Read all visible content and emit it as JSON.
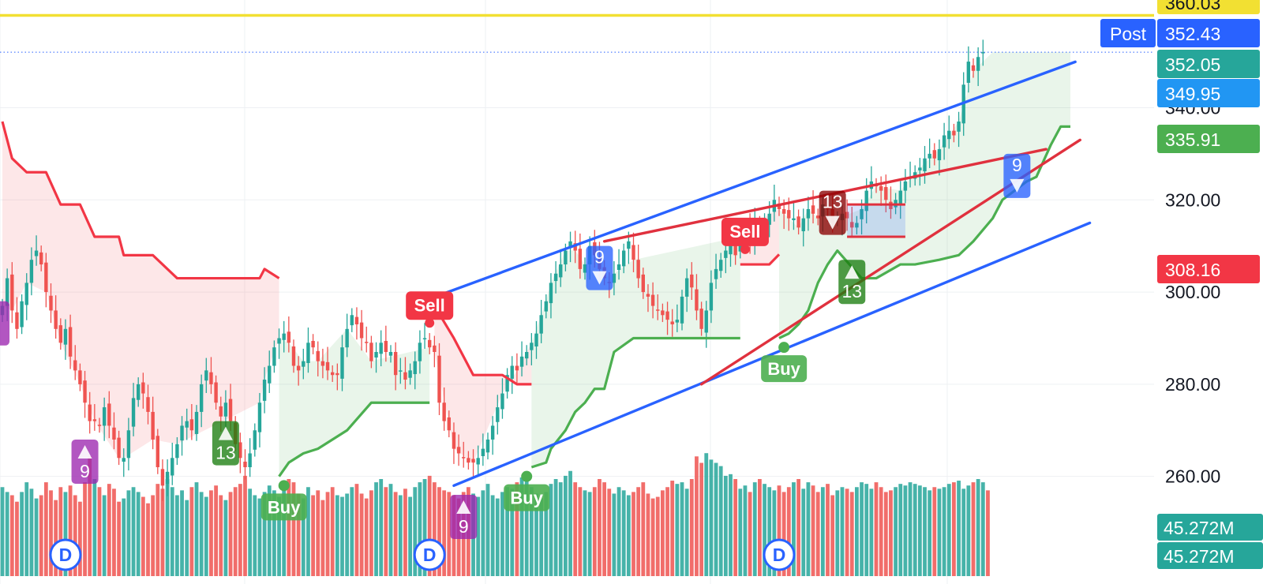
{
  "chart_data": {
    "type": "candlestick",
    "timeframe": "D",
    "y_axis": {
      "min": 250,
      "max": 362,
      "tick_labels": [
        "360.03",
        "340.00",
        "320.00",
        "300.00",
        "280.00",
        "260.00"
      ],
      "ticks": [
        340,
        320,
        300,
        280,
        260
      ],
      "top_clipped_label": "360.03"
    },
    "price_badges": [
      {
        "id": "post-price",
        "prefix": "Post",
        "text": "352.43",
        "value": 352.43,
        "color": "#2962ff"
      },
      {
        "id": "last-price",
        "text": "352.05",
        "value": 352.05,
        "color": "#26a69a"
      },
      {
        "id": "channel-upper",
        "text": "349.95",
        "value": 349.95,
        "color": "#2196f3"
      },
      {
        "id": "supertrend-up",
        "text": "335.91",
        "value": 335.91,
        "color": "#4caf50"
      },
      {
        "id": "supertrend-down",
        "text": "308.16",
        "value": 308.16,
        "color": "#f23645"
      }
    ],
    "volume_badges": [
      "45.272M",
      "45.272M"
    ],
    "horizontal_line": {
      "value": 360.03,
      "color": "#f2e032"
    },
    "dotted_line": {
      "value": 352.05
    },
    "close_series": [
      297,
      303,
      296,
      292,
      298,
      302,
      307,
      309,
      306,
      300,
      296,
      292,
      289,
      292,
      286,
      283,
      280,
      276,
      272,
      272,
      271,
      275,
      271,
      268,
      264,
      264,
      270,
      277,
      280,
      278,
      274,
      268,
      262,
      258,
      261,
      264,
      267,
      271,
      272,
      270,
      274,
      280,
      283,
      280,
      276,
      273,
      276,
      272,
      267,
      264,
      262,
      265,
      270,
      276,
      281,
      284,
      288,
      290,
      291,
      289,
      284,
      283,
      285,
      289,
      288,
      285,
      284,
      283,
      282,
      282,
      288,
      292,
      295,
      293,
      290,
      289,
      285,
      287,
      289,
      287,
      287,
      282,
      283,
      281,
      283,
      285,
      289,
      290,
      288,
      287,
      276,
      272,
      270,
      266,
      265,
      264,
      263,
      263,
      264,
      266,
      268,
      271,
      275,
      278,
      282,
      284,
      283,
      286,
      287,
      289,
      291,
      295,
      298,
      302,
      304,
      306,
      309,
      311,
      309,
      305,
      306,
      310,
      308,
      305,
      303,
      302,
      304,
      306,
      309,
      311,
      307,
      303,
      300,
      299,
      297,
      296,
      295,
      294,
      293,
      294,
      299,
      303,
      301,
      296,
      292,
      296,
      302,
      305,
      307,
      309,
      311,
      308,
      312,
      314,
      311,
      315,
      313,
      315,
      317,
      320,
      318,
      317,
      316,
      316,
      314,
      316,
      318,
      317,
      316,
      319,
      318,
      315,
      316,
      317,
      316,
      314,
      315,
      318,
      322,
      324,
      323,
      322,
      320,
      318,
      320,
      322,
      324,
      325,
      326,
      327,
      329,
      330,
      329,
      331,
      334,
      335,
      334,
      337,
      345,
      350,
      348,
      351,
      352.05
    ],
    "volume_series": [
      55,
      52,
      50,
      46,
      52,
      58,
      54,
      48,
      50,
      58,
      53,
      47,
      55,
      52,
      56,
      50,
      46,
      58,
      74,
      60,
      55,
      50,
      57,
      54,
      46,
      48,
      53,
      55,
      52,
      49,
      45,
      50,
      57,
      54,
      60,
      55,
      50,
      53,
      47,
      55,
      58,
      52,
      49,
      53,
      56,
      50,
      47,
      52,
      55,
      57,
      62,
      54,
      50,
      48,
      52,
      56,
      53,
      49,
      55,
      60,
      58,
      51,
      48,
      55,
      50,
      53,
      47,
      52,
      55,
      50,
      49,
      51,
      55,
      57,
      51,
      48,
      53,
      58,
      60,
      55,
      57,
      52,
      50,
      54,
      49,
      55,
      58,
      60,
      62,
      58,
      55,
      53,
      52,
      50,
      48,
      52,
      55,
      51,
      49,
      53,
      57,
      50,
      48,
      52,
      55,
      54,
      58,
      61,
      60,
      55,
      51,
      48,
      52,
      57,
      60,
      58,
      62,
      65,
      58,
      55,
      53,
      52,
      55,
      60,
      58,
      54,
      51,
      55,
      53,
      50,
      52,
      55,
      58,
      51,
      48,
      49,
      53,
      55,
      59,
      57,
      58,
      54,
      60,
      74,
      70,
      76,
      72,
      70,
      68,
      62,
      63,
      60,
      54,
      56,
      52,
      58,
      60,
      57,
      55,
      53,
      56,
      52,
      55,
      58,
      60,
      54,
      58,
      56,
      52,
      55,
      57,
      50,
      53,
      55,
      54,
      52,
      55,
      58,
      57,
      54,
      58,
      55,
      52,
      53,
      55,
      57,
      56,
      58,
      57,
      56,
      55,
      53,
      55,
      54,
      55,
      57,
      58,
      59,
      54,
      56,
      58,
      60,
      58,
      53
    ],
    "supertrend_down": {
      "color": "#f23645",
      "segments": [
        [
          {
            "i": 0,
            "v": 337
          },
          {
            "i": 2,
            "v": 329
          },
          {
            "i": 5,
            "v": 326
          },
          {
            "i": 9,
            "v": 326
          },
          {
            "i": 12,
            "v": 319
          },
          {
            "i": 16,
            "v": 319
          },
          {
            "i": 19,
            "v": 312
          },
          {
            "i": 24,
            "v": 312
          },
          {
            "i": 25,
            "v": 308
          },
          {
            "i": 31,
            "v": 308
          },
          {
            "i": 36,
            "v": 303
          },
          {
            "i": 53,
            "v": 303
          },
          {
            "i": 54,
            "v": 305
          },
          {
            "i": 57,
            "v": 303
          }
        ],
        [
          {
            "i": 89,
            "v": 297
          },
          {
            "i": 93,
            "v": 290
          },
          {
            "i": 97,
            "v": 282
          },
          {
            "i": 103,
            "v": 282
          },
          {
            "i": 106,
            "v": 280
          },
          {
            "i": 109,
            "v": 280
          }
        ],
        [
          {
            "i": 152,
            "v": 306
          },
          {
            "i": 158,
            "v": 306
          },
          {
            "i": 160,
            "v": 308.16
          }
        ]
      ]
    },
    "supertrend_up": {
      "color": "#4caf50",
      "segments": [
        [
          {
            "i": 57,
            "v": 260
          },
          {
            "i": 59,
            "v": 263
          },
          {
            "i": 62,
            "v": 265
          },
          {
            "i": 65,
            "v": 266
          },
          {
            "i": 71,
            "v": 270
          },
          {
            "i": 76,
            "v": 276
          },
          {
            "i": 88,
            "v": 276
          }
        ],
        [
          {
            "i": 109,
            "v": 262
          },
          {
            "i": 112,
            "v": 263
          },
          {
            "i": 113,
            "v": 266
          },
          {
            "i": 116,
            "v": 270
          },
          {
            "i": 118,
            "v": 274
          },
          {
            "i": 120,
            "v": 276
          },
          {
            "i": 122,
            "v": 279
          },
          {
            "i": 124,
            "v": 279
          },
          {
            "i": 126,
            "v": 287
          },
          {
            "i": 130,
            "v": 290
          },
          {
            "i": 152,
            "v": 290
          }
        ],
        [
          {
            "i": 160,
            "v": 290
          },
          {
            "i": 162,
            "v": 291
          },
          {
            "i": 164,
            "v": 293
          },
          {
            "i": 166,
            "v": 296
          },
          {
            "i": 168,
            "v": 302
          },
          {
            "i": 170,
            "v": 306
          },
          {
            "i": 172,
            "v": 309
          },
          {
            "i": 177,
            "v": 303
          },
          {
            "i": 180,
            "v": 303
          },
          {
            "i": 185,
            "v": 306
          },
          {
            "i": 188,
            "v": 306
          },
          {
            "i": 193,
            "v": 307
          },
          {
            "i": 197,
            "v": 308
          },
          {
            "i": 200,
            "v": 311
          },
          {
            "i": 204,
            "v": 316
          },
          {
            "i": 206,
            "v": 320
          },
          {
            "i": 211,
            "v": 324
          },
          {
            "i": 213,
            "v": 325
          },
          {
            "i": 216,
            "v": 332
          },
          {
            "i": 218,
            "v": 335.91
          },
          {
            "i": 220,
            "v": 335.91
          }
        ]
      ]
    },
    "trend_lines": [
      {
        "id": "channel-upper-line",
        "color": "#2962ff",
        "from": {
          "i": 84,
          "v": 297
        },
        "to": {
          "i": 221,
          "v": 349.95
        }
      },
      {
        "id": "channel-lower-line",
        "color": "#2962ff",
        "from": {
          "i": 93,
          "v": 258
        },
        "to": {
          "i": 224,
          "v": 315
        }
      },
      {
        "id": "resistance-line",
        "color": "#e0313e",
        "from": {
          "i": 124,
          "v": 311
        },
        "to": {
          "i": 215,
          "v": 331
        }
      },
      {
        "id": "support-line",
        "color": "#e0313e",
        "from": {
          "i": 144,
          "v": 280
        },
        "to": {
          "i": 222,
          "v": 333
        }
      }
    ],
    "box": {
      "color": "#2962ff",
      "red_color": "#e0313e",
      "from": {
        "i": 174,
        "v": 319
      },
      "to": {
        "i": 186,
        "v": 312
      }
    },
    "markers": [
      {
        "type": "sell",
        "label": "Sell",
        "i": 88,
        "v": 295
      },
      {
        "type": "sell",
        "label": "Sell",
        "i": 153,
        "v": 311
      },
      {
        "type": "buy",
        "label": "Buy",
        "i": 58,
        "v": 258
      },
      {
        "type": "buy",
        "label": "Buy",
        "i": 108,
        "v": 260
      },
      {
        "type": "buy",
        "label": "Buy",
        "i": 161,
        "v": 288
      },
      {
        "type": "td-up",
        "label": "9",
        "i": 17,
        "v": 268,
        "color": "#9c27b0"
      },
      {
        "type": "td-up",
        "label": "9",
        "i": 95,
        "v": 256,
        "color": "#9c27b0"
      },
      {
        "type": "td-up",
        "label": "13",
        "i": 46,
        "v": 272,
        "color": "#1b7e0f"
      },
      {
        "type": "td-up",
        "label": "13",
        "i": 175,
        "v": 307,
        "color": "#1b7e0f"
      },
      {
        "type": "td-down",
        "label": "9",
        "i": 123,
        "v": 310,
        "color": "#2962ff"
      },
      {
        "type": "td-down",
        "label": "9",
        "i": 209,
        "v": 330,
        "color": "#2962ff"
      },
      {
        "type": "td-down",
        "label": "13",
        "i": 171,
        "v": 322,
        "color": "#8b0000"
      },
      {
        "type": "td-up",
        "label": "",
        "i": 0,
        "v": 298,
        "color": "#9c27b0"
      }
    ],
    "event_markers": [
      {
        "label": "D",
        "i": 13
      },
      {
        "label": "D",
        "i": 88
      },
      {
        "label": "D",
        "i": 160
      }
    ],
    "legend_placement": "none",
    "grid": true
  },
  "colors": {
    "up": "#26a69a",
    "down": "#ef5350",
    "grid": "#eef0f3",
    "sell": "#f23645",
    "buy": "#4caf50"
  }
}
